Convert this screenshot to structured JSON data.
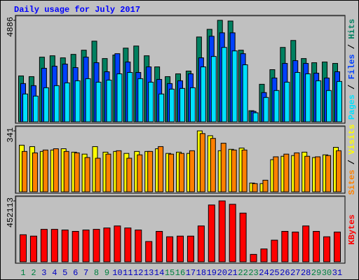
{
  "chart_data": [
    {
      "type": "bar",
      "title": "Daily usage for July 2017",
      "legend_separator": " / ",
      "ylim": [
        0,
        4886
      ],
      "yticks": [
        4886
      ],
      "series": [
        {
          "name": "Hits",
          "color": "#008060",
          "values": [
            2209,
            2175,
            3112,
            3179,
            3079,
            3246,
            3447,
            3882,
            3045,
            3213,
            3547,
            3648,
            3179,
            2644,
            2175,
            2309,
            2443,
            4083,
            4451,
            4886,
            4852,
            3447,
            535,
            1807,
            2510,
            3581,
            3916,
            3045,
            2845,
            2878,
            2811
          ]
        },
        {
          "name": "Files",
          "color": "#0040ff",
          "values": [
            1841,
            1740,
            2577,
            2677,
            2778,
            2610,
            3112,
            2845,
            2409,
            3280,
            2878,
            2376,
            2644,
            2041,
            1841,
            1975,
            2309,
            3079,
            4118,
            4284,
            4284,
            3280,
            502,
            1406,
            2108,
            2811,
            2945,
            2811,
            2342,
            2108,
            2409
          ]
        },
        {
          "name": "Pages",
          "color": "#00e0ff",
          "values": [
            1339,
            1238,
            1640,
            1740,
            1874,
            1975,
            2075,
            1908,
            2008,
            2309,
            2376,
            2075,
            1908,
            1339,
            1573,
            1607,
            1640,
            2644,
            3146,
            3581,
            3413,
            2744,
            435,
            1171,
            1506,
            1908,
            2376,
            2309,
            1975,
            1506,
            1942
          ]
        }
      ]
    },
    {
      "type": "bar",
      "legend_separator": " / ",
      "ylim": [
        0,
        341
      ],
      "yticks": [
        341
      ],
      "series": [
        {
          "name": "Visits",
          "color": "#ffff00",
          "values": [
            261,
            253,
            226,
            234,
            241,
            222,
            211,
            253,
            222,
            226,
            215,
            226,
            226,
            241,
            215,
            222,
            215,
            341,
            314,
            230,
            238,
            245,
            49,
            46,
            180,
            199,
            203,
            222,
            192,
            207,
            249
          ]
        },
        {
          "name": "Sites",
          "color": "#ff8000",
          "values": [
            226,
            218,
            234,
            241,
            226,
            218,
            192,
            188,
            211,
            230,
            188,
            207,
            226,
            253,
            211,
            215,
            230,
            326,
            299,
            272,
            234,
            234,
            46,
            65,
            196,
            211,
            218,
            199,
            196,
            203,
            230
          ]
        }
      ]
    },
    {
      "type": "bar",
      "ylim": [
        0,
        452113
      ],
      "yticks": [
        452113
      ],
      "categories": [
        "1",
        "2",
        "3",
        "4",
        "5",
        "6",
        "7",
        "8",
        "9",
        "10",
        "11",
        "12",
        "13",
        "14",
        "15",
        "16",
        "17",
        "18",
        "19",
        "20",
        "21",
        "22",
        "23",
        "24",
        "25",
        "26",
        "27",
        "28",
        "29",
        "30",
        "31"
      ],
      "category_colors": [
        "#008040",
        "#008040",
        "#0000c0",
        "#0000c0",
        "#0000c0",
        "#0000c0",
        "#0000c0",
        "#008040",
        "#008040",
        "#0000c0",
        "#0000c0",
        "#0000c0",
        "#0000c0",
        "#0000c0",
        "#008040",
        "#008040",
        "#0000c0",
        "#0000c0",
        "#0000c0",
        "#0000c0",
        "#0000c0",
        "#008040",
        "#008040",
        "#0000c0",
        "#0000c0",
        "#0000c0",
        "#0000c0",
        "#0000c0",
        "#008040",
        "#008040",
        "#0000c0"
      ],
      "series": [
        {
          "name": "KBytes",
          "color": "#ff0000",
          "values": [
            200939,
            190892,
            241127,
            241127,
            236103,
            226057,
            236103,
            241127,
            251174,
            266244,
            251174,
            236103,
            150704,
            226057,
            185868,
            190892,
            190892,
            266244,
            421972,
            452113,
            426995,
            361690,
            55258,
            95446,
            160751,
            226057,
            221033,
            266244,
            226057,
            185868,
            221033
          ]
        }
      ]
    }
  ]
}
